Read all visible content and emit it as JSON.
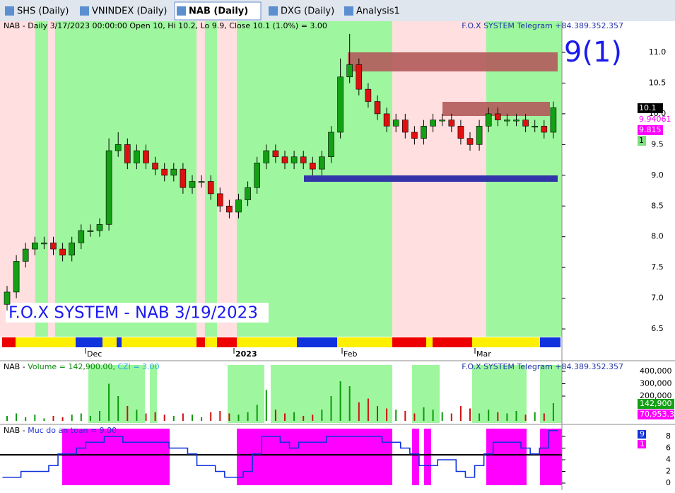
{
  "tabs": [
    "SHS (Daily)",
    "VNINDEX (Daily)",
    "NAB (Daily)",
    "DXG (Daily)",
    "Analysis1"
  ],
  "price_pane": {
    "header": "NAB - Daily 3/17/2023 00:00:00 Open 10, Hi 10.2, Lo 9.9, Close 10.1 (1.0%)  = 3.00",
    "brand": "F.O.X SYSTEM Telegram +84.389.352.357",
    "signal": "9(1)",
    "watermark": "F.O.X SYSTEM - NAB 3/19/2023",
    "yticks": [
      6.5,
      {
        "value": 7,
        "label": "7.0"
      },
      7.5,
      {
        "value": 8,
        "label": "8.0"
      },
      8.5,
      {
        "value": 9,
        "label": "9.0"
      },
      9.5,
      {
        "value": 10,
        "label": "10.0"
      },
      10.5,
      {
        "value": 11,
        "label": "11.0"
      }
    ],
    "right_labels": [
      "10.1",
      "9.94061",
      "9.815",
      "1"
    ],
    "dates": [
      "Dec",
      "2023",
      "Feb",
      "Mar"
    ],
    "candles": [
      [
        6.9,
        7.2,
        6.8,
        7.1
      ],
      [
        7.1,
        7.7,
        7.0,
        7.6
      ],
      [
        7.6,
        7.9,
        7.5,
        7.8
      ],
      [
        7.8,
        8.0,
        7.7,
        7.9
      ],
      [
        7.9,
        8.0,
        7.8,
        7.9
      ],
      [
        7.9,
        8.0,
        7.7,
        7.8
      ],
      [
        7.8,
        7.9,
        7.6,
        7.7
      ],
      [
        7.7,
        8.0,
        7.6,
        7.9
      ],
      [
        7.9,
        8.2,
        7.8,
        8.1
      ],
      [
        8.1,
        8.2,
        8.0,
        8.1
      ],
      [
        8.1,
        8.3,
        8.0,
        8.2
      ],
      [
        8.2,
        9.6,
        8.1,
        9.4
      ],
      [
        9.4,
        9.7,
        9.3,
        9.5
      ],
      [
        9.5,
        9.6,
        9.1,
        9.2
      ],
      [
        9.2,
        9.5,
        9.1,
        9.4
      ],
      [
        9.4,
        9.5,
        9.1,
        9.2
      ],
      [
        9.2,
        9.3,
        9.0,
        9.1
      ],
      [
        9.1,
        9.2,
        8.9,
        9.0
      ],
      [
        9.0,
        9.2,
        8.9,
        9.1
      ],
      [
        9.1,
        9.2,
        8.7,
        8.8
      ],
      [
        8.8,
        9.0,
        8.7,
        8.9
      ],
      [
        8.9,
        9.0,
        8.8,
        8.9
      ],
      [
        8.9,
        9.0,
        8.6,
        8.7
      ],
      [
        8.7,
        8.8,
        8.4,
        8.5
      ],
      [
        8.5,
        8.6,
        8.3,
        8.4
      ],
      [
        8.4,
        8.7,
        8.3,
        8.6
      ],
      [
        8.6,
        8.9,
        8.5,
        8.8
      ],
      [
        8.8,
        9.3,
        8.7,
        9.2
      ],
      [
        9.2,
        9.5,
        9.1,
        9.4
      ],
      [
        9.4,
        9.5,
        9.2,
        9.3
      ],
      [
        9.3,
        9.4,
        9.1,
        9.2
      ],
      [
        9.2,
        9.4,
        9.1,
        9.3
      ],
      [
        9.3,
        9.4,
        9.1,
        9.2
      ],
      [
        9.2,
        9.3,
        9.0,
        9.1
      ],
      [
        9.1,
        9.4,
        9.0,
        9.3
      ],
      [
        9.3,
        9.8,
        9.2,
        9.7
      ],
      [
        9.7,
        10.9,
        9.6,
        10.6
      ],
      [
        10.6,
        11.3,
        10.5,
        10.8
      ],
      [
        10.8,
        10.9,
        10.3,
        10.4
      ],
      [
        10.4,
        10.5,
        10.1,
        10.2
      ],
      [
        10.2,
        10.3,
        9.9,
        10.0
      ],
      [
        10.0,
        10.1,
        9.7,
        9.8
      ],
      [
        9.8,
        10.0,
        9.7,
        9.9
      ],
      [
        9.9,
        10.0,
        9.6,
        9.7
      ],
      [
        9.7,
        9.8,
        9.5,
        9.6
      ],
      [
        9.6,
        9.9,
        9.5,
        9.8
      ],
      [
        9.8,
        10.0,
        9.7,
        9.9
      ],
      [
        9.9,
        10.0,
        9.8,
        9.9
      ],
      [
        9.9,
        10.0,
        9.7,
        9.8
      ],
      [
        9.8,
        9.9,
        9.5,
        9.6
      ],
      [
        9.6,
        9.7,
        9.4,
        9.5
      ],
      [
        9.5,
        9.9,
        9.4,
        9.8
      ],
      [
        9.8,
        10.1,
        9.7,
        10.0
      ],
      [
        10.0,
        10.1,
        9.8,
        9.9
      ],
      [
        9.9,
        10.0,
        9.8,
        9.9
      ],
      [
        9.9,
        10.0,
        9.8,
        9.9
      ],
      [
        9.9,
        10.0,
        9.7,
        9.8
      ],
      [
        9.8,
        9.9,
        9.7,
        9.8
      ],
      [
        9.8,
        9.9,
        9.6,
        9.7
      ],
      [
        9.7,
        10.2,
        9.6,
        10.1
      ]
    ]
  },
  "volume_pane": {
    "prefix": "NAB - ",
    "volume": "Volume = 142,900.00,",
    "czi": "CZI = 3.00",
    "brand": "F.O.X SYSTEM Telegram +84.389.352.357",
    "yticks": [
      {
        "value": 200000,
        "label": "200,000"
      },
      {
        "value": 300000,
        "label": "300,000"
      },
      {
        "value": 400000,
        "label": "400,000"
      }
    ],
    "right_labels": [
      "142,900",
      "70,953.3"
    ],
    "volumes": [
      40000,
      60000,
      30000,
      50000,
      20000,
      40000,
      30000,
      50000,
      60000,
      40000,
      80000,
      300000,
      200000,
      120000,
      90000,
      60000,
      70000,
      50000,
      40000,
      60000,
      50000,
      30000,
      70000,
      80000,
      60000,
      50000,
      70000,
      130000,
      250000,
      90000,
      60000,
      70000,
      40000,
      50000,
      90000,
      200000,
      320000,
      280000,
      150000,
      180000,
      120000,
      100000,
      90000,
      80000,
      60000,
      110000,
      90000,
      70000,
      60000,
      120000,
      100000,
      60000,
      90000,
      70000,
      60000,
      80000,
      50000,
      70000,
      60000,
      142900
    ]
  },
  "safety_pane": {
    "prefix": "NAB - ",
    "name": "Muc do an toan = 9.00",
    "yticks": [
      0,
      2,
      4,
      6,
      8
    ],
    "right_labels": [
      "9",
      "1"
    ],
    "values": [
      1,
      1,
      2,
      2,
      2,
      3,
      5,
      5,
      6,
      7,
      7,
      8,
      8,
      7,
      7,
      7,
      7,
      7,
      6,
      6,
      5,
      3,
      3,
      2,
      1,
      1,
      2,
      5,
      8,
      8,
      7,
      6,
      7,
      7,
      7,
      8,
      8,
      8,
      8,
      8,
      8,
      7,
      7,
      6,
      5,
      3,
      3,
      4,
      4,
      2,
      1,
      3,
      5,
      7,
      7,
      7,
      6,
      5,
      6,
      9
    ]
  }
}
